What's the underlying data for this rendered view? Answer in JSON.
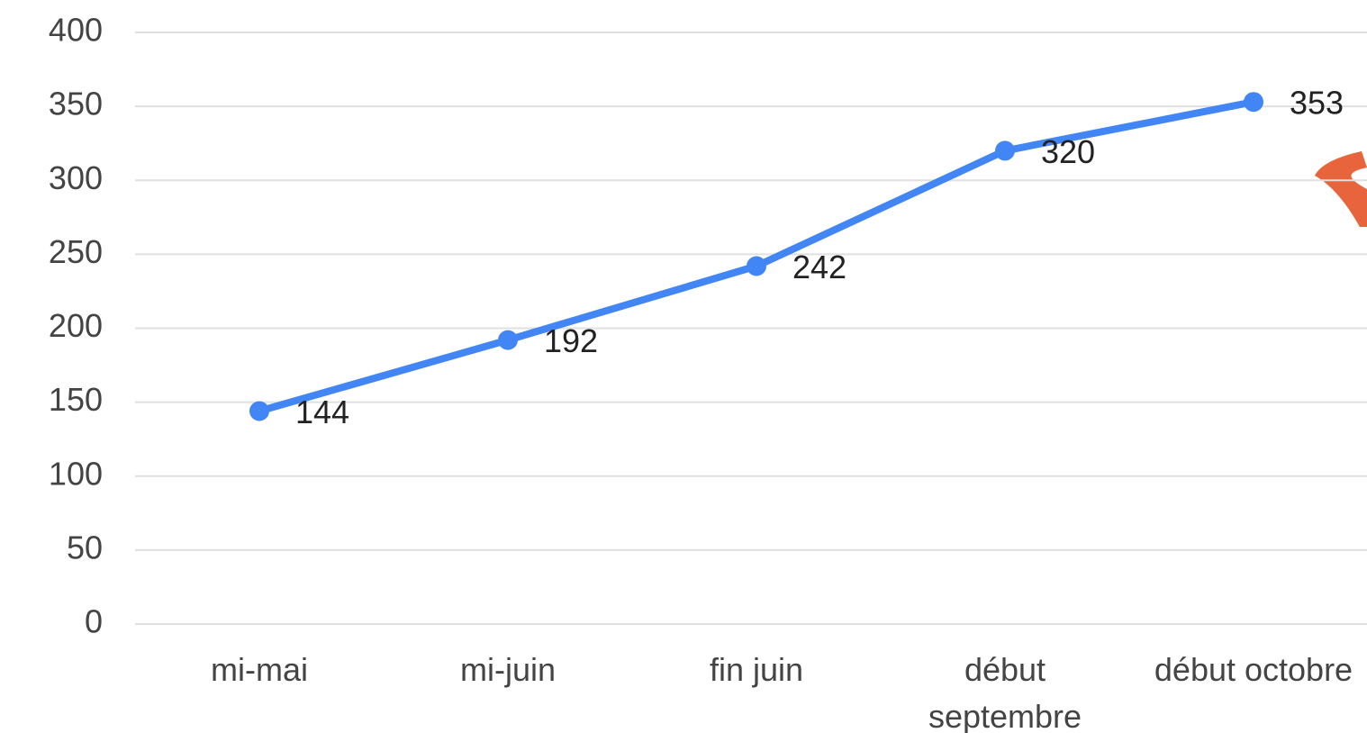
{
  "chart_data": {
    "type": "line",
    "categories": [
      "mi-mai",
      "mi-juin",
      "fin juin",
      "début septembre",
      "début octobre"
    ],
    "series": [
      {
        "name": "",
        "color": "#4285f4",
        "values": [
          144,
          192,
          242,
          320,
          353
        ]
      }
    ],
    "ylim": [
      0,
      400
    ],
    "yticks": [
      0,
      50,
      100,
      150,
      200,
      250,
      300,
      350,
      400
    ],
    "grid": true,
    "data_labels": true
  }
}
